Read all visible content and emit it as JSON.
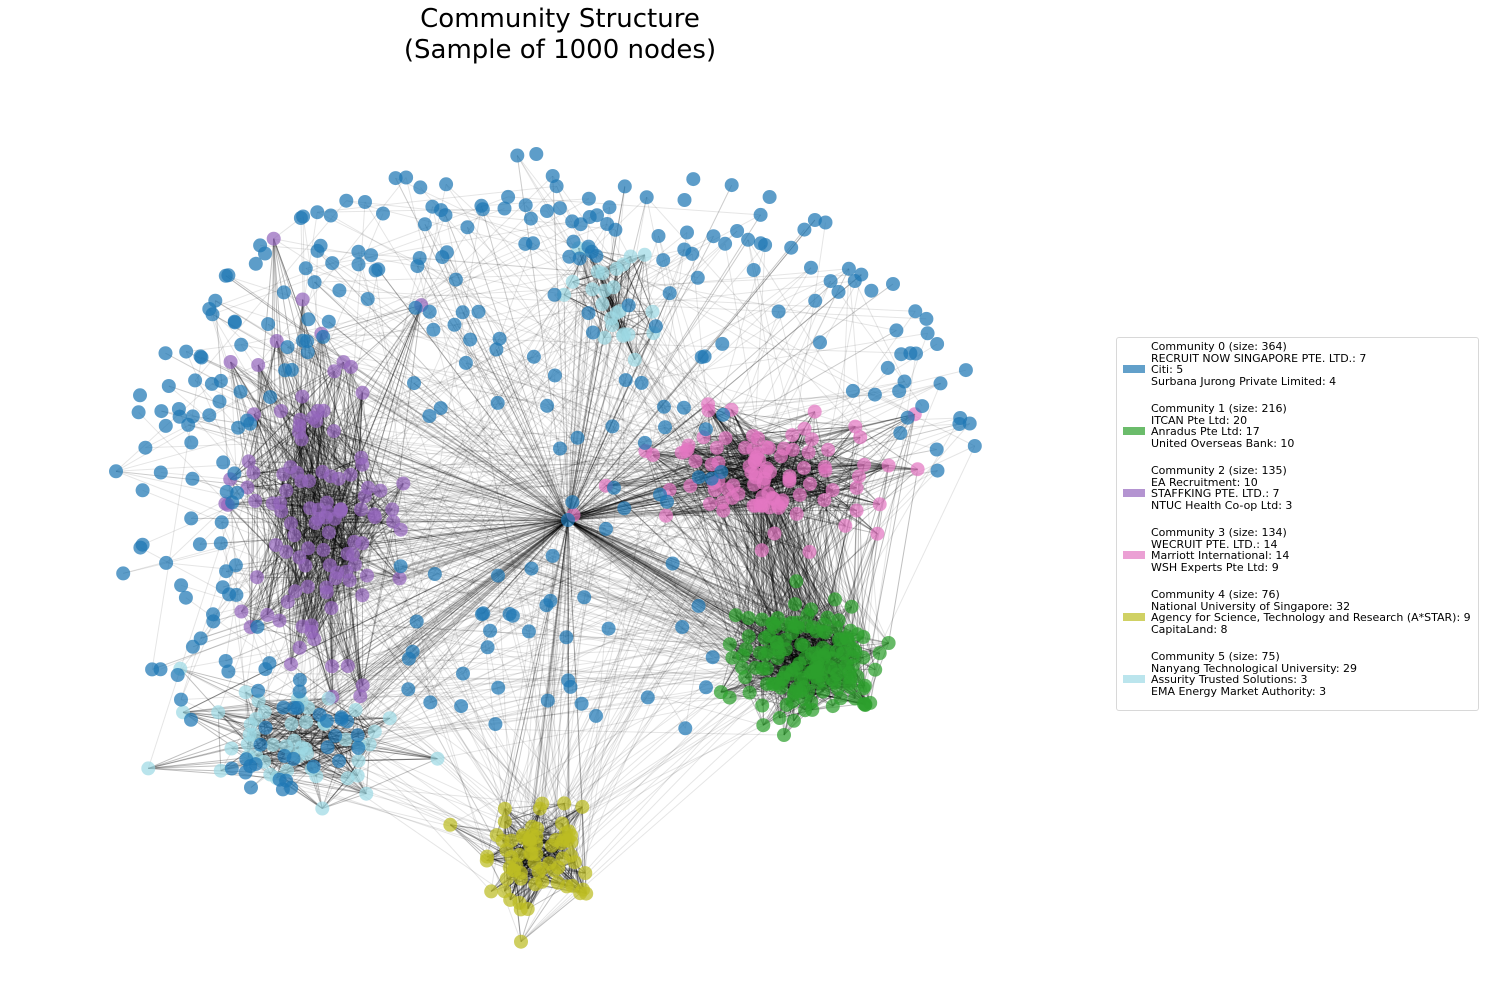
{
  "title": "Community Structure\n(Sample of 1000 nodes)",
  "edge_color": "#000000",
  "communities": [
    {
      "color": "#1f77b4",
      "lines": [
        "Community 0 (size: 364)",
        "RECRUIT NOW SINGAPORE PTE. LTD.: 7",
        "Citi: 5",
        "Surbana Jurong Private Limited: 4"
      ]
    },
    {
      "color": "#2ca02c",
      "lines": [
        "Community 1 (size: 216)",
        "ITCAN Pte Ltd: 20",
        "Anradus Pte Ltd: 17",
        "United Overseas Bank: 10"
      ]
    },
    {
      "color": "#9467bd",
      "lines": [
        "Community 2 (size: 135)",
        "EA Recruitment: 10",
        "STAFFKING PTE. LTD.: 7",
        "NTUC Health Co-op Ltd: 3"
      ]
    },
    {
      "color": "#e377c2",
      "lines": [
        "Community 3 (size: 134)",
        "WECRUIT PTE. LTD.: 14",
        "Marriott International: 14",
        "WSH Experts Pte Ltd: 9"
      ]
    },
    {
      "color": "#bcbd22",
      "lines": [
        "Community 4 (size: 76)",
        "National University of Singapore: 32",
        "Agency for Science, Technology and Research (A*STAR): 9",
        "CapitaLand: 8"
      ]
    },
    {
      "color": "#9edae5",
      "lines": [
        "Community 5 (size: 75)",
        "Nanyang Technological University: 29",
        "Assurity Trusted Solutions: 3",
        "EMA Energy Market Authority: 3"
      ]
    }
  ]
}
